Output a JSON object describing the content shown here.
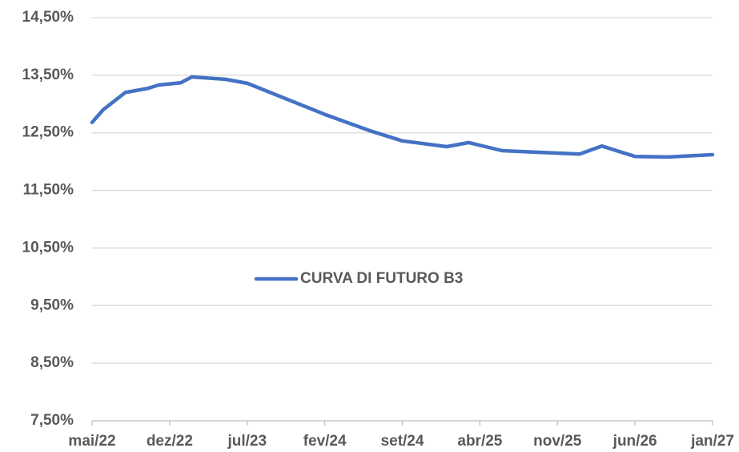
{
  "chart_data": {
    "type": "line",
    "x": [
      "2022-05",
      "2022-06",
      "2022-08",
      "2022-10",
      "2022-11",
      "2023-01",
      "2023-02",
      "2023-05",
      "2023-07",
      "2024-02",
      "2024-06",
      "2024-09",
      "2025-01",
      "2025-03",
      "2025-06",
      "2026-01",
      "2026-03",
      "2026-06",
      "2026-09",
      "2027-01"
    ],
    "series": [
      {
        "name": "CURVA DI FUTURO B3",
        "color": "#4472c4",
        "values": [
          12.68,
          12.9,
          13.2,
          13.27,
          13.33,
          13.37,
          13.47,
          13.43,
          13.36,
          12.82,
          12.54,
          12.36,
          12.26,
          12.33,
          12.19,
          12.13,
          12.27,
          12.09,
          12.08,
          12.12
        ]
      }
    ],
    "xlim": [
      "2022-05",
      "2027-01"
    ],
    "xticks": [
      {
        "value": "2022-05",
        "label": "mai/22"
      },
      {
        "value": "2022-12",
        "label": "dez/22"
      },
      {
        "value": "2023-07",
        "label": "jul/23"
      },
      {
        "value": "2024-02",
        "label": "fev/24"
      },
      {
        "value": "2024-09",
        "label": "set/24"
      },
      {
        "value": "2025-04",
        "label": "abr/25"
      },
      {
        "value": "2025-11",
        "label": "nov/25"
      },
      {
        "value": "2026-06",
        "label": "jun/26"
      },
      {
        "value": "2027-01",
        "label": "jan/27"
      }
    ],
    "ylim": [
      7.5,
      14.5
    ],
    "yticks": [
      {
        "value": 7.5,
        "label": "7,50%"
      },
      {
        "value": 8.5,
        "label": "8,50%"
      },
      {
        "value": 9.5,
        "label": "9,50%"
      },
      {
        "value": 10.5,
        "label": "10,50%"
      },
      {
        "value": 11.5,
        "label": "11,50%"
      },
      {
        "value": 12.5,
        "label": "12,50%"
      },
      {
        "value": 13.5,
        "label": "13,50%"
      },
      {
        "value": 14.5,
        "label": "14,50%"
      }
    ],
    "grid": true,
    "legend": "center"
  }
}
